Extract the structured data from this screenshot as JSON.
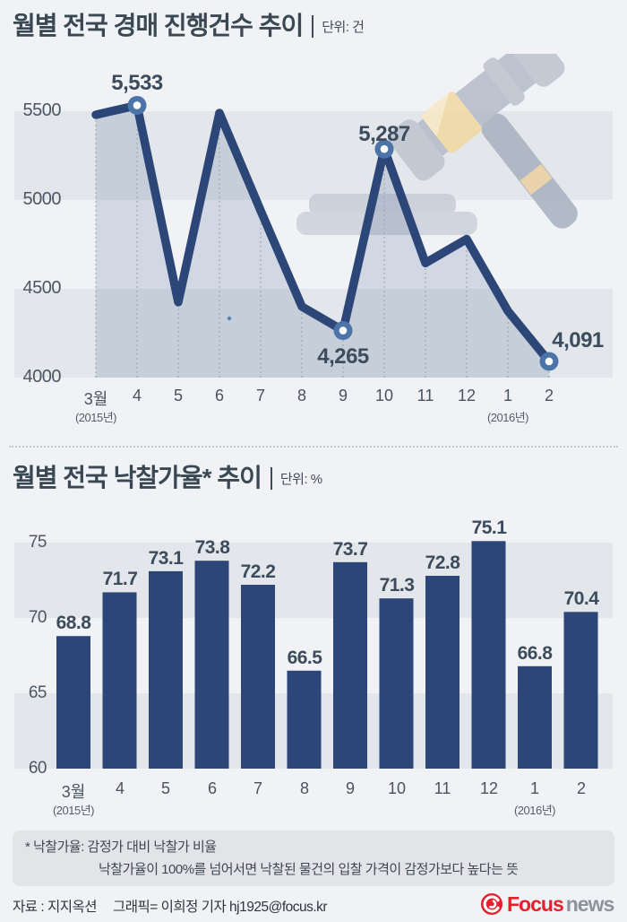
{
  "colors": {
    "navy": "#2b4677",
    "marker_ring": "#4d74a8",
    "marker_center": "#ffffff",
    "stripe": "#e3e6ea",
    "area_fill": "rgba(86,110,155,0.20)",
    "dotted_guide": "#a2a9b4",
    "page_bg": "#f0f2f5",
    "text_dark": "#3d4b59",
    "logo_red": "#e4202c",
    "logo_gray": "#8d939b"
  },
  "section1": {
    "title": "월별 전국 경매 진행건수 추이",
    "unit": "단위: 건"
  },
  "section2": {
    "title": "월별 전국 낙찰가율* 추이",
    "unit": "단위: %"
  },
  "chart_data": [
    {
      "type": "line",
      "title": "월별 전국 경매 진행건수 추이",
      "unit": "건",
      "categories": [
        "3월",
        "4",
        "5",
        "6",
        "7",
        "8",
        "9",
        "10",
        "11",
        "12",
        "1",
        "2"
      ],
      "year_notes": [
        {
          "index": 0,
          "label": "(2015년)"
        },
        {
          "index": 10,
          "label": "(2016년)"
        }
      ],
      "values": [
        5480,
        5533,
        4425,
        5490,
        4940,
        4400,
        4265,
        5287,
        4645,
        4780,
        4375,
        4091
      ],
      "labeled_points": [
        {
          "index": 1,
          "label": "5,533"
        },
        {
          "index": 7,
          "label": "5,287"
        },
        {
          "index": 6,
          "label": "4,265"
        },
        {
          "index": 11,
          "label": "4,091"
        }
      ],
      "yticks": [
        5500,
        5000,
        4500,
        4000
      ],
      "ylim": [
        4000,
        5600
      ],
      "grid": "striped-bands",
      "legend": "none"
    },
    {
      "type": "bar",
      "title": "월별 전국 낙찰가율* 추이",
      "unit": "%",
      "categories": [
        "3월",
        "4",
        "5",
        "6",
        "7",
        "8",
        "9",
        "10",
        "11",
        "12",
        "1",
        "2"
      ],
      "year_notes": [
        {
          "index": 0,
          "label": "(2015년)"
        },
        {
          "index": 10,
          "label": "(2016년)"
        }
      ],
      "values": [
        68.8,
        71.7,
        73.1,
        73.8,
        72.2,
        66.5,
        73.7,
        71.3,
        72.8,
        75.1,
        66.8,
        70.4
      ],
      "yticks": [
        75,
        70,
        65,
        60
      ],
      "ylim": [
        60,
        77
      ],
      "grid": "striped-bands",
      "legend": "none"
    }
  ],
  "footnote": {
    "line1": "* 낙찰가율: 감정가 대비 낙찰가 비율",
    "line2": "낙찰가율이 100%를 넘어서면 낙찰된 물건의 입찰 가격이 감정가보다 높다는 뜻"
  },
  "footer": {
    "source": "자료 : 지지옥션",
    "credit": "그래픽= 이희정 기자 hj1925@focus.kr",
    "logo_focus": "Focus",
    "logo_news": "news"
  }
}
